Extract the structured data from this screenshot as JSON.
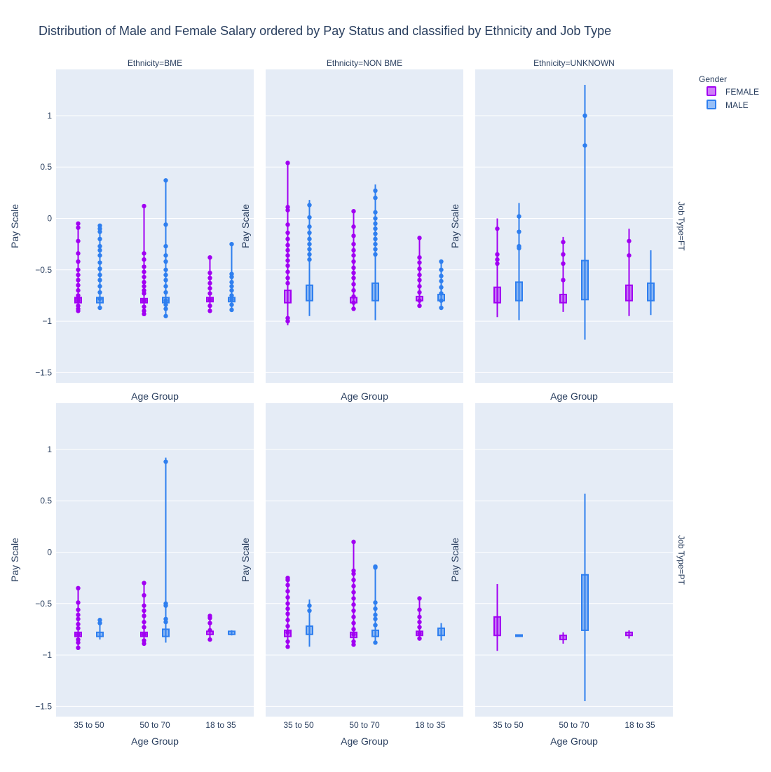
{
  "chart_data": {
    "type": "violin",
    "title": "Distribution of Male and Female Salary ordered by Pay Status and classified by Ethnicity and Job Type",
    "xlabel": "Age Group",
    "ylabel": "Pay Scale",
    "categories": [
      "35 to 50",
      "50 to 70",
      "18 to 35"
    ],
    "yticks": [
      -1.5,
      -1,
      -0.5,
      0,
      0.5,
      1
    ],
    "ytick_labels": [
      "−1.5",
      "−1",
      "−0.5",
      "0",
      "0.5",
      "1"
    ],
    "ylim": [
      -1.6,
      1.45
    ],
    "column_facets": [
      "Ethnicity=BME",
      "Ethnicity=NON BME",
      "Ethnicity=UNKNOWN"
    ],
    "row_facets": [
      "Job Type=FT",
      "Job Type=PT"
    ],
    "legend": {
      "title": "Gender",
      "position": "top-right",
      "items": [
        {
          "name": "FEMALE",
          "color": "#a100f2"
        },
        {
          "name": "MALE",
          "color": "#2f7fef"
        }
      ]
    },
    "panels": [
      {
        "row": 0,
        "col": 0,
        "groups": [
          {
            "cat": 0,
            "gender": "FEMALE",
            "min": -0.91,
            "max": -0.05,
            "q1": -0.82,
            "q3": -0.77,
            "points": [
              -0.05,
              -0.09,
              -0.22,
              -0.34,
              -0.42,
              -0.5,
              -0.55,
              -0.6,
              -0.65,
              -0.7,
              -0.75,
              -0.78,
              -0.8,
              -0.85,
              -0.88,
              -0.9
            ]
          },
          {
            "cat": 0,
            "gender": "MALE",
            "min": -0.88,
            "max": -0.07,
            "q1": -0.82,
            "q3": -0.77,
            "points": [
              -0.07,
              -0.1,
              -0.13,
              -0.2,
              -0.27,
              -0.31,
              -0.36,
              -0.43,
              -0.49,
              -0.55,
              -0.6,
              -0.66,
              -0.72,
              -0.78,
              -0.87
            ]
          },
          {
            "cat": 1,
            "gender": "FEMALE",
            "min": -0.94,
            "max": 0.12,
            "q1": -0.82,
            "q3": -0.78,
            "points": [
              0.12,
              -0.34,
              -0.4,
              -0.47,
              -0.52,
              -0.57,
              -0.62,
              -0.66,
              -0.7,
              -0.73,
              -0.8,
              -0.86,
              -0.9,
              -0.93
            ]
          },
          {
            "cat": 1,
            "gender": "MALE",
            "min": -0.96,
            "max": 0.39,
            "q1": -0.82,
            "q3": -0.77,
            "points": [
              0.37,
              -0.06,
              -0.27,
              -0.36,
              -0.42,
              -0.5,
              -0.55,
              -0.6,
              -0.66,
              -0.72,
              -0.8,
              -0.84,
              -0.88,
              -0.95
            ]
          },
          {
            "cat": 2,
            "gender": "FEMALE",
            "min": -0.91,
            "max": -0.38,
            "q1": -0.81,
            "q3": -0.77,
            "points": [
              -0.38,
              -0.53,
              -0.58,
              -0.63,
              -0.68,
              -0.73,
              -0.79,
              -0.85,
              -0.9
            ]
          },
          {
            "cat": 2,
            "gender": "MALE",
            "min": -0.9,
            "max": -0.25,
            "q1": -0.81,
            "q3": -0.77,
            "points": [
              -0.25,
              -0.54,
              -0.57,
              -0.62,
              -0.66,
              -0.7,
              -0.75,
              -0.79,
              -0.84,
              -0.89
            ]
          }
        ]
      },
      {
        "row": 0,
        "col": 1,
        "groups": [
          {
            "cat": 0,
            "gender": "FEMALE",
            "min": -1.04,
            "max": 0.56,
            "q1": -0.82,
            "q3": -0.7,
            "points": [
              0.54,
              0.11,
              0.08,
              -0.06,
              -0.14,
              -0.2,
              -0.26,
              -0.31,
              -0.36,
              -0.41,
              -0.46,
              -0.52,
              -0.58,
              -0.63,
              -0.97,
              -1.0
            ]
          },
          {
            "cat": 0,
            "gender": "MALE",
            "min": -0.95,
            "max": 0.18,
            "q1": -0.8,
            "q3": -0.65,
            "points": [
              0.13,
              0.01,
              -0.08,
              -0.14,
              -0.2,
              -0.25,
              -0.3,
              -0.35,
              -0.4
            ]
          },
          {
            "cat": 1,
            "gender": "FEMALE",
            "min": -0.9,
            "max": 0.08,
            "q1": -0.82,
            "q3": -0.77,
            "points": [
              0.07,
              -0.08,
              -0.17,
              -0.25,
              -0.31,
              -0.36,
              -0.42,
              -0.48,
              -0.53,
              -0.58,
              -0.64,
              -0.7,
              -0.76,
              -0.82,
              -0.88
            ]
          },
          {
            "cat": 1,
            "gender": "MALE",
            "min": -0.99,
            "max": 0.33,
            "q1": -0.8,
            "q3": -0.63,
            "points": [
              0.27,
              0.2,
              0.06,
              0.0,
              -0.05,
              -0.1,
              -0.15,
              -0.2,
              -0.25,
              -0.3,
              -0.35
            ]
          },
          {
            "cat": 2,
            "gender": "FEMALE",
            "min": -0.87,
            "max": -0.19,
            "q1": -0.8,
            "q3": -0.76,
            "points": [
              -0.19,
              -0.38,
              -0.43,
              -0.49,
              -0.55,
              -0.6,
              -0.66,
              -0.72,
              -0.8,
              -0.85
            ]
          },
          {
            "cat": 2,
            "gender": "MALE",
            "min": -0.88,
            "max": -0.42,
            "q1": -0.8,
            "q3": -0.74,
            "points": [
              -0.42,
              -0.5,
              -0.56,
              -0.61,
              -0.67,
              -0.73,
              -0.8,
              -0.87
            ]
          }
        ]
      },
      {
        "row": 0,
        "col": 2,
        "groups": [
          {
            "cat": 0,
            "gender": "FEMALE",
            "min": -0.96,
            "max": 0.0,
            "q1": -0.82,
            "q3": -0.67,
            "points": [
              -0.1,
              -0.35,
              -0.4,
              -0.44
            ]
          },
          {
            "cat": 0,
            "gender": "MALE",
            "min": -0.99,
            "max": 0.15,
            "q1": -0.8,
            "q3": -0.62,
            "points": [
              0.02,
              -0.13,
              -0.27,
              -0.29
            ]
          },
          {
            "cat": 1,
            "gender": "FEMALE",
            "min": -0.91,
            "max": -0.18,
            "q1": -0.82,
            "q3": -0.74,
            "points": [
              -0.23,
              -0.35,
              -0.44,
              -0.6
            ]
          },
          {
            "cat": 1,
            "gender": "MALE",
            "min": -1.18,
            "max": 1.3,
            "q1": -0.79,
            "q3": -0.41,
            "points": [
              1.0,
              0.71
            ]
          },
          {
            "cat": 2,
            "gender": "FEMALE",
            "min": -0.95,
            "max": -0.1,
            "q1": -0.8,
            "q3": -0.65,
            "points": [
              -0.22,
              -0.36
            ]
          },
          {
            "cat": 2,
            "gender": "MALE",
            "min": -0.94,
            "max": -0.31,
            "q1": -0.8,
            "q3": -0.63,
            "points": []
          }
        ]
      },
      {
        "row": 1,
        "col": 0,
        "groups": [
          {
            "cat": 0,
            "gender": "FEMALE",
            "min": -0.93,
            "max": -0.35,
            "q1": -0.82,
            "q3": -0.78,
            "points": [
              -0.35,
              -0.49,
              -0.56,
              -0.61,
              -0.65,
              -0.7,
              -0.74,
              -0.8,
              -0.85,
              -0.88,
              -0.93
            ]
          },
          {
            "cat": 0,
            "gender": "MALE",
            "min": -0.85,
            "max": -0.66,
            "q1": -0.82,
            "q3": -0.78,
            "points": [
              -0.66,
              -0.69
            ]
          },
          {
            "cat": 1,
            "gender": "FEMALE",
            "min": -0.9,
            "max": -0.3,
            "q1": -0.82,
            "q3": -0.78,
            "points": [
              -0.3,
              -0.42,
              -0.52,
              -0.57,
              -0.62,
              -0.68,
              -0.73,
              -0.8,
              -0.86,
              -0.89
            ]
          },
          {
            "cat": 1,
            "gender": "MALE",
            "min": -0.88,
            "max": 0.92,
            "q1": -0.82,
            "q3": -0.75,
            "points": [
              0.88,
              -0.5,
              -0.52,
              -0.65,
              -0.68
            ]
          },
          {
            "cat": 2,
            "gender": "FEMALE",
            "min": -0.86,
            "max": -0.62,
            "q1": -0.8,
            "q3": -0.77,
            "points": [
              -0.62,
              -0.64,
              -0.69,
              -0.76,
              -0.85
            ]
          },
          {
            "cat": 2,
            "gender": "MALE",
            "min": -0.81,
            "max": -0.76,
            "q1": -0.8,
            "q3": -0.77,
            "points": []
          }
        ]
      },
      {
        "row": 1,
        "col": 1,
        "groups": [
          {
            "cat": 0,
            "gender": "FEMALE",
            "min": -0.92,
            "max": -0.25,
            "q1": -0.82,
            "q3": -0.76,
            "points": [
              -0.25,
              -0.27,
              -0.32,
              -0.38,
              -0.44,
              -0.5,
              -0.55,
              -0.6,
              -0.66,
              -0.72,
              -0.78,
              -0.87,
              -0.92
            ]
          },
          {
            "cat": 0,
            "gender": "MALE",
            "min": -0.92,
            "max": -0.46,
            "q1": -0.8,
            "q3": -0.72,
            "points": [
              -0.52,
              -0.57
            ]
          },
          {
            "cat": 1,
            "gender": "FEMALE",
            "min": -0.91,
            "max": 0.11,
            "q1": -0.83,
            "q3": -0.78,
            "points": [
              0.1,
              -0.18,
              -0.21,
              -0.27,
              -0.33,
              -0.39,
              -0.45,
              -0.51,
              -0.57,
              -0.63,
              -0.69,
              -0.75,
              -0.8,
              -0.87,
              -0.9
            ]
          },
          {
            "cat": 1,
            "gender": "MALE",
            "min": -0.88,
            "max": -0.14,
            "q1": -0.82,
            "q3": -0.76,
            "points": [
              -0.14,
              -0.15,
              -0.49,
              -0.55,
              -0.61,
              -0.65,
              -0.71,
              -0.88
            ]
          },
          {
            "cat": 2,
            "gender": "FEMALE",
            "min": -0.85,
            "max": -0.45,
            "q1": -0.81,
            "q3": -0.77,
            "points": [
              -0.45,
              -0.56,
              -0.63,
              -0.68,
              -0.73,
              -0.79,
              -0.84
            ]
          },
          {
            "cat": 2,
            "gender": "MALE",
            "min": -0.86,
            "max": -0.69,
            "q1": -0.81,
            "q3": -0.74,
            "points": []
          }
        ]
      },
      {
        "row": 1,
        "col": 2,
        "groups": [
          {
            "cat": 0,
            "gender": "FEMALE",
            "min": -0.96,
            "max": -0.31,
            "q1": -0.81,
            "q3": -0.63,
            "points": []
          },
          {
            "cat": 0,
            "gender": "MALE",
            "min": -0.815,
            "max": -0.805,
            "q1": -0.815,
            "q3": -0.805,
            "points": []
          },
          {
            "cat": 1,
            "gender": "FEMALE",
            "min": -0.89,
            "max": -0.78,
            "q1": -0.85,
            "q3": -0.81,
            "points": []
          },
          {
            "cat": 1,
            "gender": "MALE",
            "min": -1.45,
            "max": 0.57,
            "q1": -0.76,
            "q3": -0.22,
            "points": []
          },
          {
            "cat": 2,
            "gender": "FEMALE",
            "min": -0.84,
            "max": -0.76,
            "q1": -0.81,
            "q3": -0.78,
            "points": []
          }
        ]
      }
    ]
  }
}
